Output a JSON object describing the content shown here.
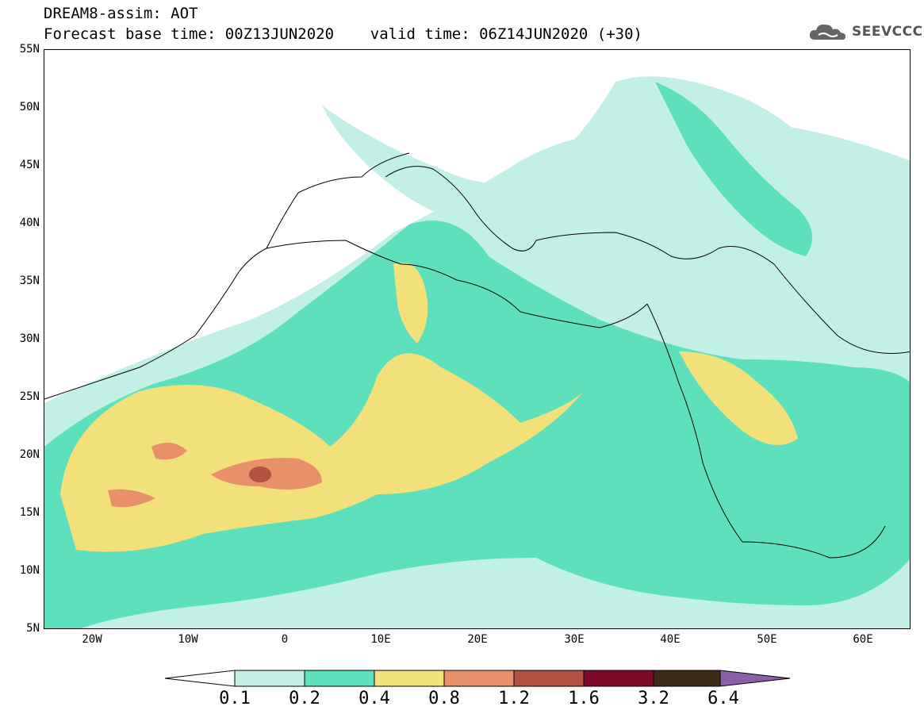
{
  "title_line1": "DREAM8-assim: AOT",
  "title_line2": "Forecast base time: 00Z13JUN2020    valid time: 06Z14JUN2020 (+30)",
  "logo": {
    "text": "SEEVCCC",
    "icon": "cloud-logo-icon"
  },
  "map": {
    "lat_labels": [
      "55N",
      "50N",
      "45N",
      "40N",
      "35N",
      "30N",
      "25N",
      "20N",
      "15N",
      "10N",
      "5N"
    ],
    "lon_labels": [
      "20W",
      "10W",
      "0",
      "10E",
      "20E",
      "30E",
      "40E",
      "50E",
      "60E"
    ],
    "lon_range": [
      -25,
      65
    ],
    "lat_range": [
      5,
      55
    ]
  },
  "colorbar": {
    "levels": [
      "0.1",
      "0.2",
      "0.4",
      "0.8",
      "1.2",
      "1.6",
      "3.2",
      "6.4"
    ],
    "colors": [
      "#ffffff",
      "#c2f0e6",
      "#5ee0bd",
      "#f2e07a",
      "#e8906b",
      "#b55044",
      "#7f0b2a",
      "#3d2a17",
      "#8b5fa8"
    ]
  }
}
